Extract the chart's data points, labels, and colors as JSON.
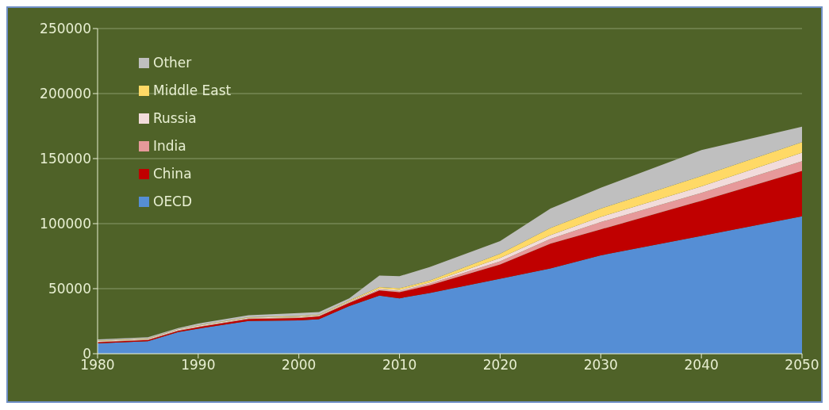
{
  "chart_data": {
    "type": "area",
    "stacked": true,
    "x": [
      1980,
      1985,
      1988,
      1990,
      1995,
      2000,
      2002,
      2005,
      2008,
      2010,
      2013,
      2020,
      2025,
      2030,
      2040,
      2050
    ],
    "series": [
      {
        "name": "OECD",
        "color": "#558ed5",
        "values": [
          8000,
          9600,
          16600,
          19200,
          25200,
          25600,
          26600,
          36600,
          44600,
          42600,
          46600,
          57600,
          65600,
          75600,
          90600,
          105600
        ]
      },
      {
        "name": "China",
        "color": "#c00000",
        "values": [
          800,
          900,
          1000,
          1200,
          1500,
          1800,
          2000,
          2500,
          4000,
          4600,
          6000,
          11000,
          19000,
          20000,
          27000,
          35000
        ]
      },
      {
        "name": "India",
        "color": "#e6999a",
        "values": [
          300,
          300,
          400,
          400,
          500,
          500,
          500,
          600,
          800,
          1000,
          1200,
          2400,
          3600,
          5600,
          6000,
          7400
        ]
      },
      {
        "name": "Russia",
        "color": "#f2dcdb",
        "values": [
          700,
          700,
          700,
          700,
          600,
          600,
          600,
          600,
          800,
          900,
          1000,
          2600,
          3000,
          4000,
          5000,
          6600
        ]
      },
      {
        "name": "Middle East",
        "color": "#ffd966",
        "values": [
          200,
          200,
          200,
          300,
          300,
          400,
          400,
          500,
          1000,
          1200,
          1400,
          3200,
          5400,
          6400,
          8000,
          8000
        ]
      },
      {
        "name": "Other",
        "color": "#bfbfbf",
        "values": [
          1000,
          900,
          700,
          1400,
          1500,
          2300,
          1900,
          1800,
          8800,
          9300,
          10400,
          9800,
          15000,
          16000,
          20000,
          12000
        ]
      }
    ],
    "xlim": [
      1980,
      2050
    ],
    "xticks": [
      1980,
      1990,
      2000,
      2010,
      2020,
      2030,
      2040,
      2050
    ],
    "ylim": [
      0,
      250000
    ],
    "yticks": [
      0,
      50000,
      100000,
      150000,
      200000,
      250000
    ],
    "grid": "y",
    "legend": "top left"
  }
}
